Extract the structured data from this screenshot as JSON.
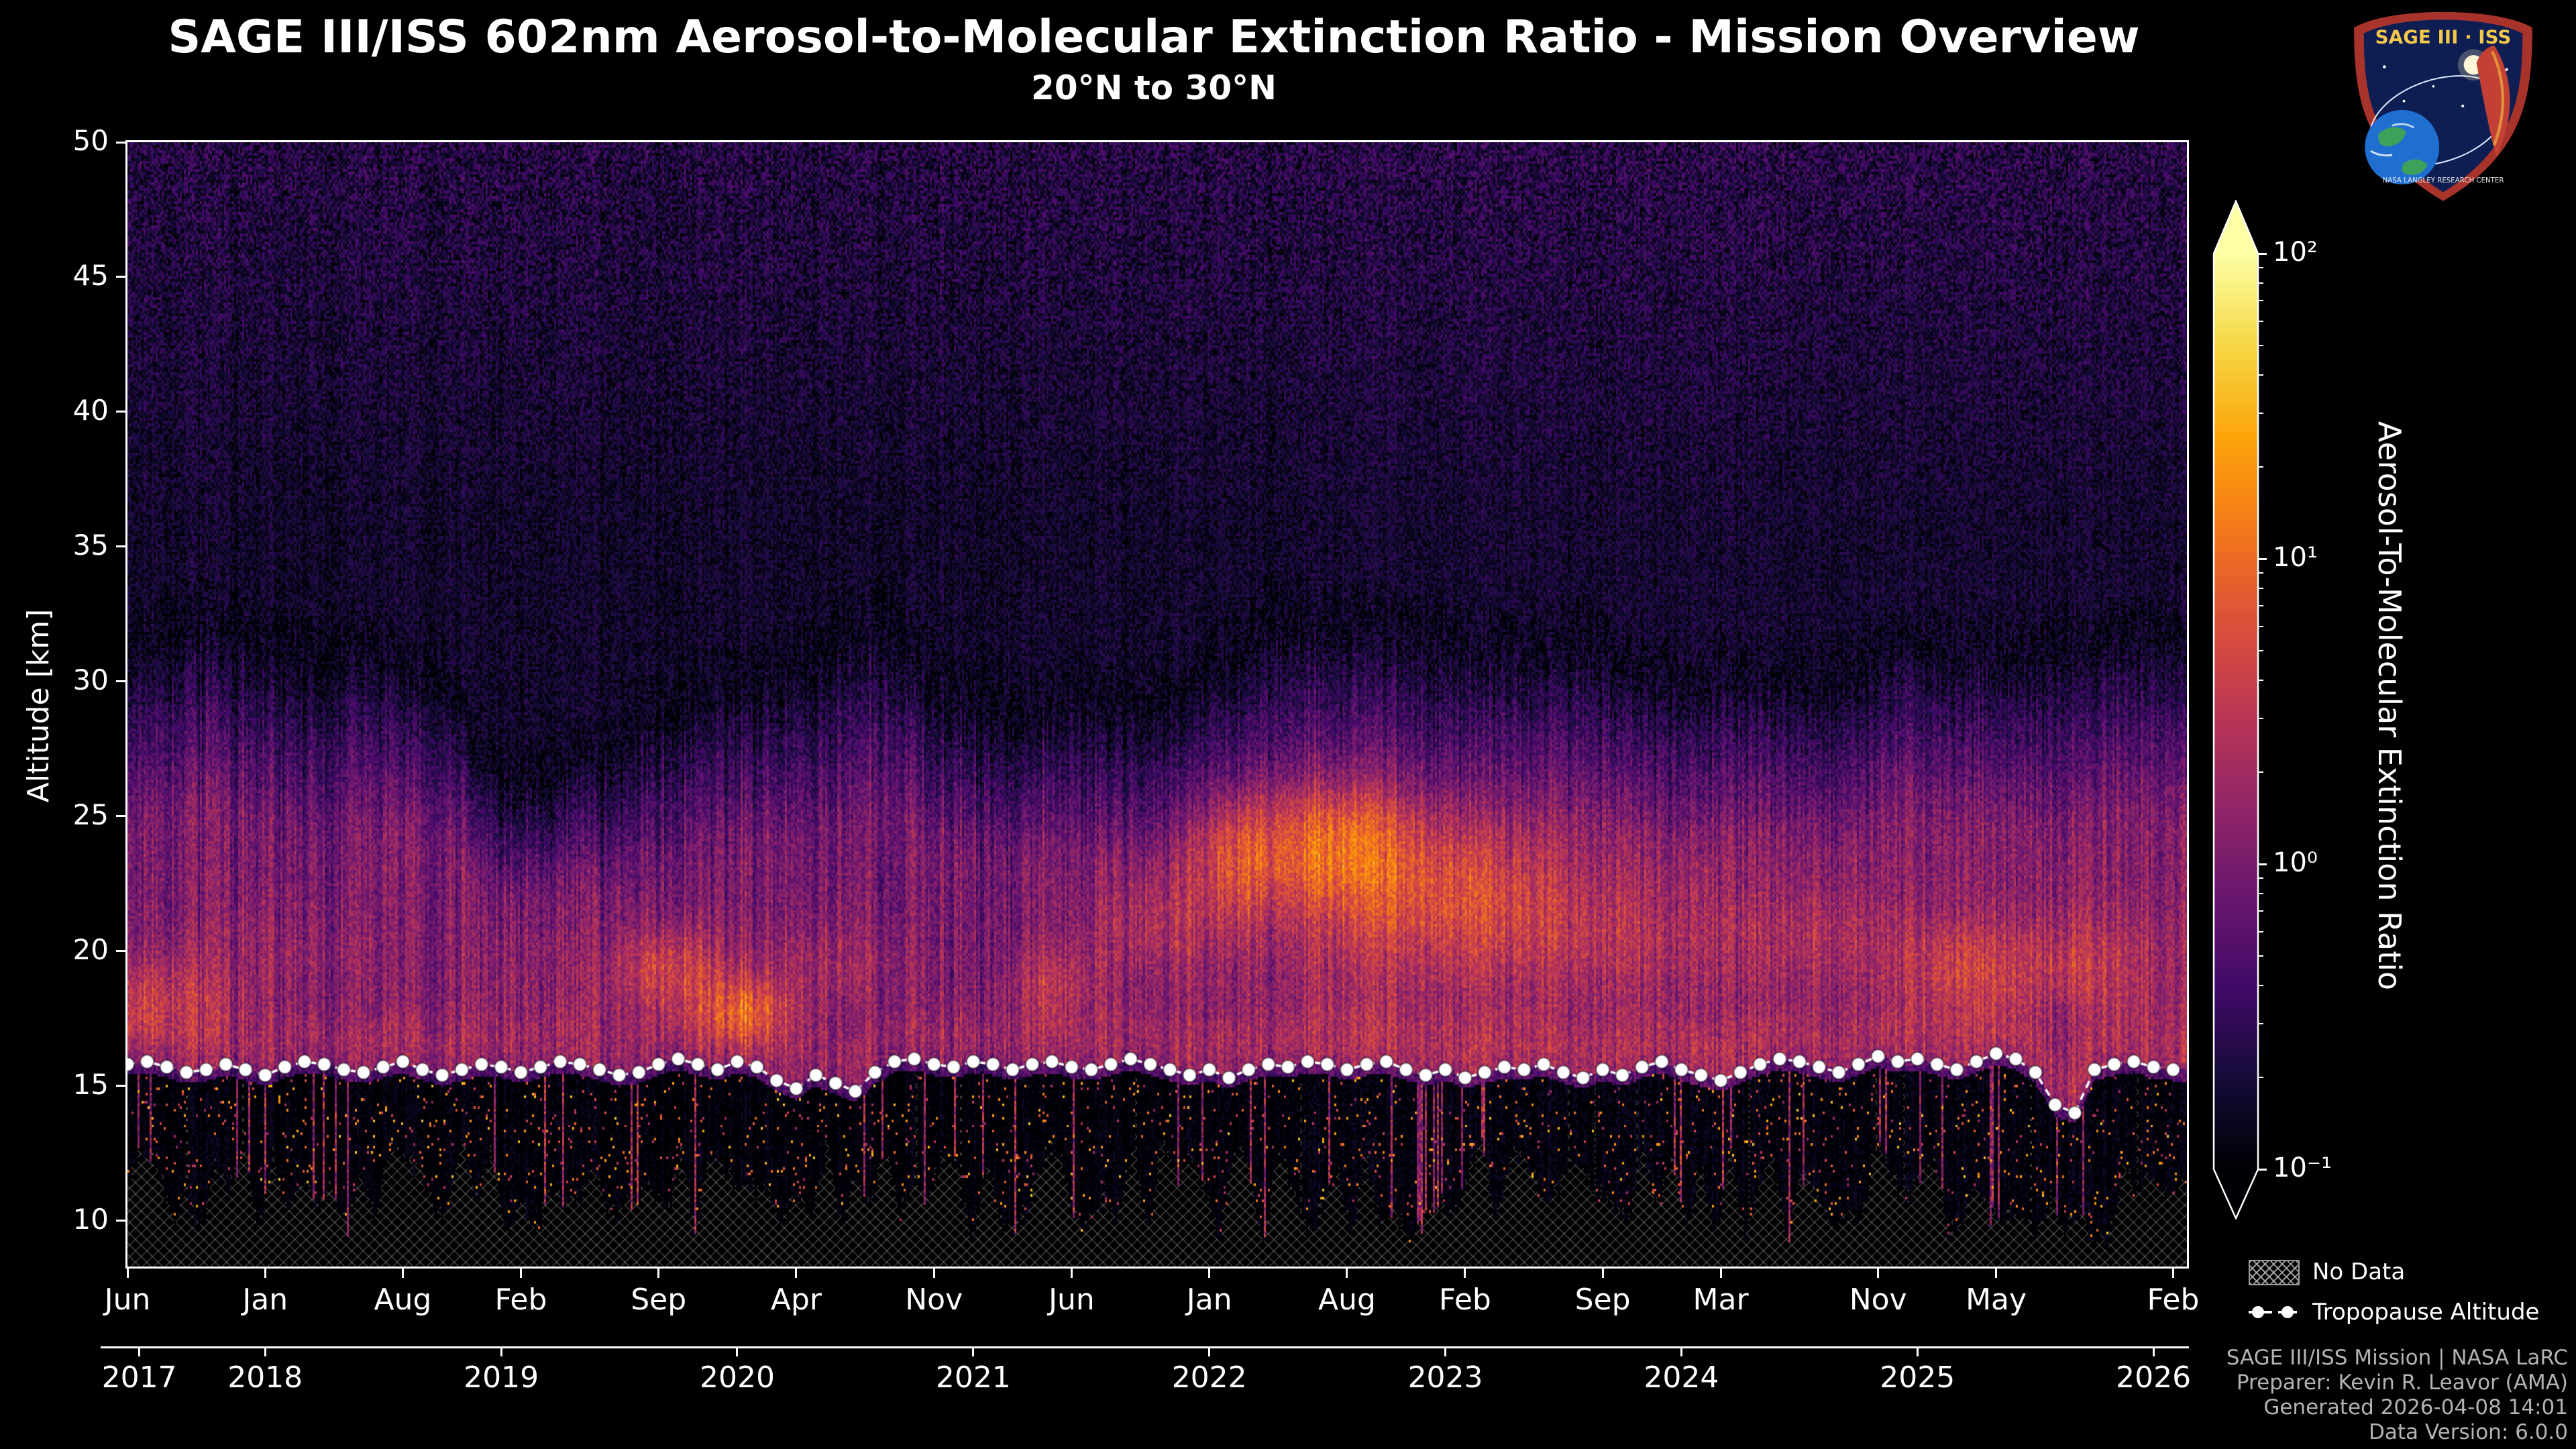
{
  "header": {
    "title": "SAGE III/ISS 602nm Aerosol-to-Molecular Extinction Ratio - Mission Overview",
    "subtitle": "20°N to 30°N"
  },
  "logo": {
    "title": "SAGE III · ISS",
    "banner": "NASA LANGLEY RESEARCH CENTER"
  },
  "legend": {
    "no_data": "No Data",
    "tropopause": "Tropopause Altitude"
  },
  "footer": {
    "line1": "SAGE III/ISS Mission | NASA LaRC",
    "line2": "Preparer: Kevin R. Leavor (AMA)",
    "line3": "Generated 2026-04-08 14:01",
    "line4": "Data Version: 6.0.0"
  },
  "chart_data": {
    "type": "heatmap",
    "title": "SAGE III/ISS 602nm Aerosol-to-Molecular Extinction Ratio - Mission Overview",
    "subtitle": "20°N to 30°N",
    "ylabel": "Altitude [km]",
    "y_range": [
      8.3,
      50
    ],
    "y_ticks": [
      10,
      15,
      20,
      25,
      30,
      35,
      40,
      45,
      50
    ],
    "x_range_months_since_2017_06": [
      0,
      104.7
    ],
    "x_month_ticks": [
      {
        "label": "Jun",
        "m": 0
      },
      {
        "label": "Jan",
        "m": 7
      },
      {
        "label": "Aug",
        "m": 14
      },
      {
        "label": "Feb",
        "m": 20
      },
      {
        "label": "Sep",
        "m": 27
      },
      {
        "label": "Apr",
        "m": 34
      },
      {
        "label": "Nov",
        "m": 41
      },
      {
        "label": "Jun",
        "m": 48
      },
      {
        "label": "Jan",
        "m": 55
      },
      {
        "label": "Aug",
        "m": 62
      },
      {
        "label": "Feb",
        "m": 68
      },
      {
        "label": "Sep",
        "m": 75
      },
      {
        "label": "Mar",
        "m": 81
      },
      {
        "label": "Nov",
        "m": 89
      },
      {
        "label": "May",
        "m": 95
      },
      {
        "label": "Feb",
        "m": 104
      }
    ],
    "x_year_ticks": [
      {
        "label": "2017",
        "m": 0.6
      },
      {
        "label": "2018",
        "m": 7
      },
      {
        "label": "2019",
        "m": 19
      },
      {
        "label": "2020",
        "m": 31
      },
      {
        "label": "2021",
        "m": 43
      },
      {
        "label": "2022",
        "m": 55
      },
      {
        "label": "2023",
        "m": 67
      },
      {
        "label": "2024",
        "m": 79
      },
      {
        "label": "2025",
        "m": 91
      },
      {
        "label": "2026",
        "m": 103
      }
    ],
    "colorbar": {
      "label": "Aerosol-To-Molecular Extinction Ratio",
      "scale": "log",
      "min": 0.1,
      "max": 100,
      "extend": "both",
      "colormap": "inferno",
      "ticks": [
        {
          "label": "10²",
          "log": 2
        },
        {
          "label": "10¹",
          "log": 1
        },
        {
          "label": "10⁰",
          "log": 0
        },
        {
          "label": "10⁻¹",
          "log": -1
        }
      ],
      "anchors": [
        [
          0,
          "#000004"
        ],
        [
          0.1,
          "#160b39"
        ],
        [
          0.2,
          "#420a68"
        ],
        [
          0.3,
          "#6a176e"
        ],
        [
          0.4,
          "#932667"
        ],
        [
          0.5,
          "#bc3754"
        ],
        [
          0.6,
          "#dd513a"
        ],
        [
          0.7,
          "#f37819"
        ],
        [
          0.8,
          "#fca50a"
        ],
        [
          0.9,
          "#f6d746"
        ],
        [
          1,
          "#fcffa4"
        ]
      ]
    },
    "tropopause_altitude_km": {
      "start": "2017-06",
      "cadence": "monthly",
      "values": [
        15.8,
        15.9,
        15.7,
        15.5,
        15.6,
        15.8,
        15.6,
        15.4,
        15.7,
        15.9,
        15.8,
        15.6,
        15.5,
        15.7,
        15.9,
        15.6,
        15.4,
        15.6,
        15.8,
        15.7,
        15.5,
        15.7,
        15.9,
        15.8,
        15.6,
        15.4,
        15.5,
        15.8,
        16.0,
        15.8,
        15.6,
        15.9,
        15.7,
        15.2,
        14.9,
        15.4,
        15.1,
        14.8,
        15.5,
        15.9,
        16.0,
        15.8,
        15.7,
        15.9,
        15.8,
        15.6,
        15.8,
        15.9,
        15.7,
        15.6,
        15.8,
        16.0,
        15.8,
        15.6,
        15.4,
        15.6,
        15.3,
        15.6,
        15.8,
        15.7,
        15.9,
        15.8,
        15.6,
        15.8,
        15.9,
        15.6,
        15.4,
        15.6,
        15.3,
        15.5,
        15.7,
        15.6,
        15.8,
        15.5,
        15.3,
        15.6,
        15.4,
        15.7,
        15.9,
        15.6,
        15.4,
        15.2,
        15.5,
        15.8,
        16.0,
        15.9,
        15.7,
        15.5,
        15.8,
        16.1,
        15.9,
        16.0,
        15.8,
        15.6,
        15.9,
        16.2,
        16.0,
        15.5,
        14.3,
        14.0,
        15.6,
        15.8,
        15.9,
        15.7,
        15.6
      ]
    },
    "aerosol_band_top_km": [
      [
        0,
        32
      ],
      [
        4,
        33
      ],
      [
        8,
        31.5
      ],
      [
        12,
        32
      ],
      [
        16,
        31
      ],
      [
        19,
        27
      ],
      [
        23,
        27.5
      ],
      [
        27,
        29.5
      ],
      [
        31,
        30.5
      ],
      [
        35,
        31.5
      ],
      [
        38,
        33
      ],
      [
        41,
        30.5
      ],
      [
        45,
        29.5
      ],
      [
        48,
        30
      ],
      [
        52,
        29.5
      ],
      [
        55,
        31
      ],
      [
        58,
        33
      ],
      [
        62,
        33
      ],
      [
        66,
        32
      ],
      [
        70,
        31.5
      ],
      [
        74,
        32
      ],
      [
        78,
        30.5
      ],
      [
        82,
        31
      ],
      [
        86,
        30.5
      ],
      [
        90,
        32
      ],
      [
        94,
        31.5
      ],
      [
        98,
        32
      ],
      [
        102,
        32
      ],
      [
        105,
        32
      ]
    ],
    "enhancement_events": [
      {
        "m0": 1,
        "dm": 4,
        "z0": 18.3,
        "dz": 1.6,
        "amp": 0.5
      },
      {
        "m0": 8,
        "dm": 5,
        "z0": 20,
        "dz": 2.4,
        "amp": 0.2
      },
      {
        "m0": 20,
        "dm": 4,
        "z0": 19,
        "dz": 1.8,
        "amp": 0.15
      },
      {
        "m0": 27.5,
        "dm": 3,
        "z0": 19.3,
        "dz": 1.7,
        "amp": 0.7
      },
      {
        "m0": 31.5,
        "dm": 2.5,
        "z0": 17.8,
        "dz": 1.2,
        "amp": 0.75
      },
      {
        "m0": 36,
        "dm": 4,
        "z0": 19.5,
        "dz": 1.8,
        "amp": 0.3
      },
      {
        "m0": 47,
        "dm": 2.5,
        "z0": 18.8,
        "dz": 1.5,
        "amp": 0.4
      },
      {
        "m0": 52,
        "dm": 3,
        "z0": 21,
        "dz": 2,
        "amp": 0.3
      },
      {
        "m0": 56.5,
        "dm": 2.5,
        "z0": 23.5,
        "dz": 2.3,
        "amp": 0.55
      },
      {
        "m0": 61.5,
        "dm": 4,
        "z0": 24,
        "dz": 2.3,
        "amp": 0.75
      },
      {
        "m0": 62,
        "dm": 10,
        "z0": 21,
        "dz": 4,
        "amp": 0.25
      },
      {
        "m0": 68,
        "dm": 6,
        "z0": 22,
        "dz": 2.6,
        "amp": 0.45
      },
      {
        "m0": 76,
        "dm": 5,
        "z0": 20.5,
        "dz": 2.2,
        "amp": 0.25
      },
      {
        "m0": 86,
        "dm": 5,
        "z0": 20.5,
        "dz": 2,
        "amp": 0.3
      },
      {
        "m0": 93.5,
        "dm": 3.5,
        "z0": 19.3,
        "dz": 1.8,
        "amp": 0.5
      },
      {
        "m0": 100,
        "dm": 4,
        "z0": 19.5,
        "dz": 2,
        "amp": 0.4
      }
    ],
    "no_data": {
      "region": "below ~9-13 km (varying), hatched xx",
      "hatch": "xx"
    },
    "noise": {
      "speckle_prob": 0.035,
      "streak_prob": 0.05
    }
  }
}
